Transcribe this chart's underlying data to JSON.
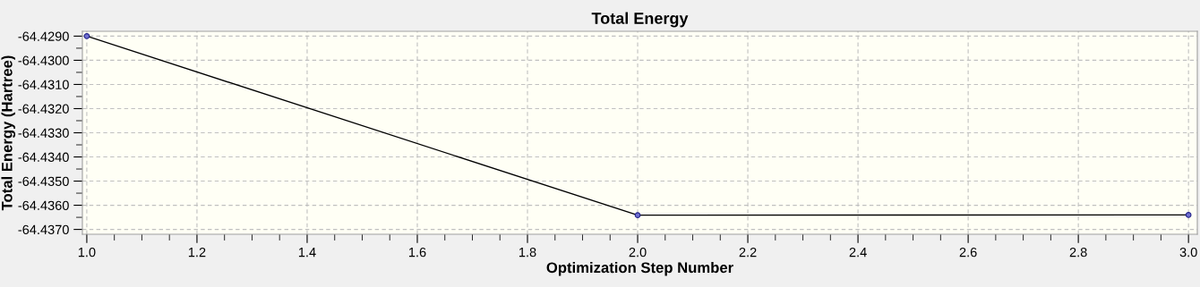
{
  "chart_data": {
    "type": "line",
    "title": "Total Energy",
    "xlabel": "Optimization Step Number",
    "ylabel": "Total Energy (Hartree)",
    "x": [
      1,
      2,
      3
    ],
    "series": [
      {
        "color": "#000000",
        "values": [
          -64.429,
          -64.43641,
          -64.4364
        ]
      }
    ],
    "xlim": [
      0.992,
      3.016
    ],
    "ylim": [
      -64.4372,
      -64.4288
    ],
    "xticks": [
      {
        "value": 1.0,
        "label": "1.0"
      },
      {
        "value": 1.2,
        "label": "1.2"
      },
      {
        "value": 1.4,
        "label": "1.4"
      },
      {
        "value": 1.6,
        "label": "1.6"
      },
      {
        "value": 1.8,
        "label": "1.8"
      },
      {
        "value": 2.0,
        "label": "2.0"
      },
      {
        "value": 2.2,
        "label": "2.2"
      },
      {
        "value": 2.4,
        "label": "2.4"
      },
      {
        "value": 2.6,
        "label": "2.6"
      },
      {
        "value": 2.8,
        "label": "2.8"
      },
      {
        "value": 3.0,
        "label": "3.0"
      }
    ],
    "yticks": [
      {
        "value": -64.429,
        "label": "-64.4290"
      },
      {
        "value": -64.43,
        "label": "-64.4300"
      },
      {
        "value": -64.431,
        "label": "-64.4310"
      },
      {
        "value": -64.432,
        "label": "-64.4320"
      },
      {
        "value": -64.433,
        "label": "-64.4330"
      },
      {
        "value": -64.434,
        "label": "-64.4340"
      },
      {
        "value": -64.435,
        "label": "-64.4350"
      },
      {
        "value": -64.436,
        "label": "-64.4360"
      },
      {
        "value": -64.437,
        "label": "-64.4370"
      }
    ],
    "grid": true,
    "marker": "circle",
    "line_style": "solid"
  }
}
